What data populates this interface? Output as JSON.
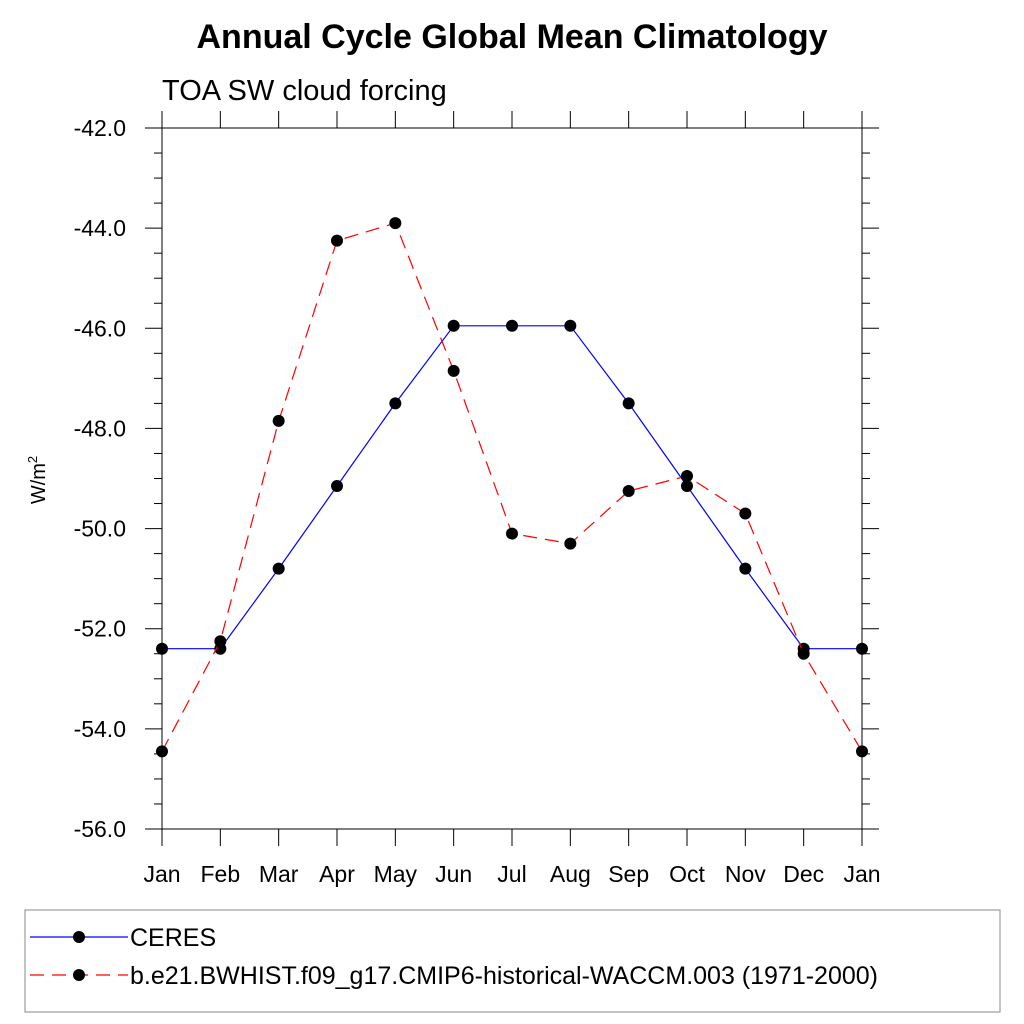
{
  "chart_data": {
    "type": "line",
    "title": "Annual Cycle Global Mean Climatology",
    "subtitle": "TOA SW cloud forcing",
    "xlabel": "",
    "ylabel": "W/m",
    "ylabel_superscript": "2",
    "ylim": [
      -56.0,
      -42.0
    ],
    "y_ticks": [
      "-42.0",
      "-44.0",
      "-46.0",
      "-48.0",
      "-50.0",
      "-52.0",
      "-54.0",
      "-56.0"
    ],
    "categories": [
      "Jan",
      "Feb",
      "Mar",
      "Apr",
      "May",
      "Jun",
      "Jul",
      "Aug",
      "Sep",
      "Oct",
      "Nov",
      "Dec",
      "Jan"
    ],
    "grid": false,
    "legend_position": "bottom",
    "series": [
      {
        "name": "CERES",
        "color": "#0000ff",
        "line_style": "solid",
        "marker": "filled-circle",
        "values": [
          -52.4,
          -52.4,
          -50.8,
          -49.15,
          -47.5,
          -45.95,
          -45.95,
          -45.95,
          -47.5,
          -49.15,
          -50.8,
          -52.4,
          -52.4
        ]
      },
      {
        "name": "b.e21.BWHIST.f09_g17.CMIP6-historical-WACCM.003 (1971-2000)",
        "color": "#ff0000",
        "line_style": "dashed",
        "marker": "filled-circle",
        "values": [
          -54.45,
          -52.25,
          -47.85,
          -44.25,
          -43.9,
          -46.85,
          -50.1,
          -50.3,
          -49.25,
          -48.95,
          -49.7,
          -52.5,
          -54.45
        ]
      }
    ]
  }
}
